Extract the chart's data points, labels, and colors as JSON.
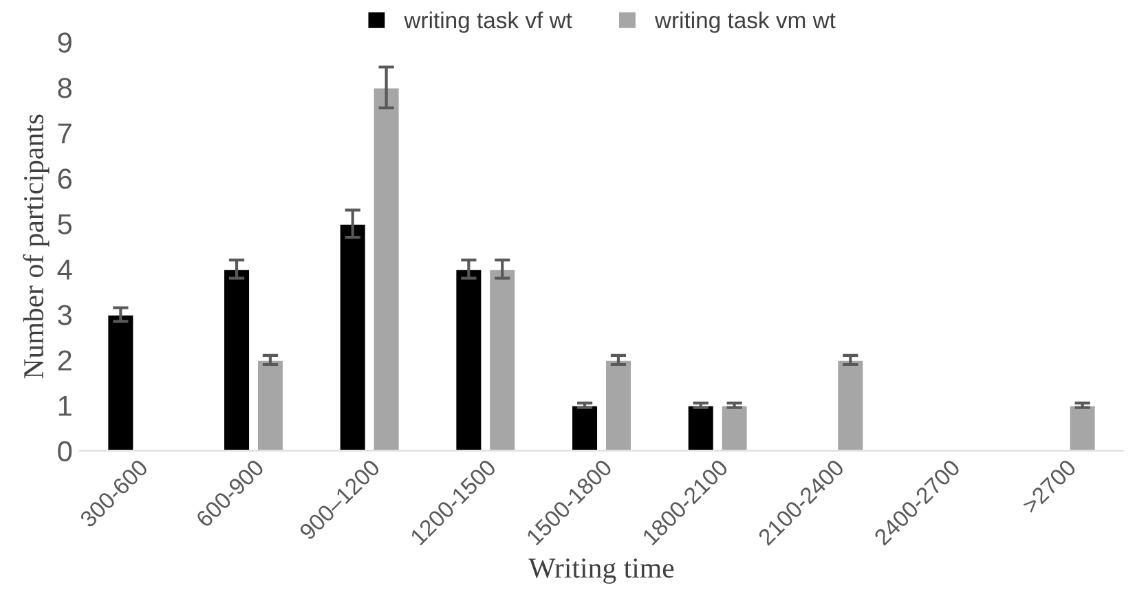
{
  "chart_data": {
    "type": "bar",
    "xlabel": "Writing time",
    "ylabel": "Number of participants",
    "categories": [
      "300-600",
      "600-900",
      "900–1200",
      "1200-1500",
      "1500-1800",
      "1800-2100",
      "2100-2400",
      "2400-2700",
      ">2700"
    ],
    "series": [
      {
        "name": "writing task vf wt",
        "color": "#000000",
        "values": [
          3,
          4,
          5,
          4,
          1,
          1,
          null,
          null,
          null
        ],
        "errors": [
          0.15,
          0.2,
          0.3,
          0.2,
          0.05,
          0.05,
          null,
          null,
          null
        ]
      },
      {
        "name": "writing task vm wt",
        "color": "#a6a6a6",
        "values": [
          null,
          2,
          8,
          4,
          2,
          1,
          2,
          null,
          1
        ],
        "errors": [
          null,
          0.1,
          0.45,
          0.2,
          0.1,
          0.05,
          0.1,
          null,
          0.05
        ]
      }
    ],
    "ylim": [
      0,
      9
    ],
    "yticks": [
      0,
      1,
      2,
      3,
      4,
      5,
      6,
      7,
      8,
      9
    ],
    "grid": false,
    "legend": "top"
  }
}
